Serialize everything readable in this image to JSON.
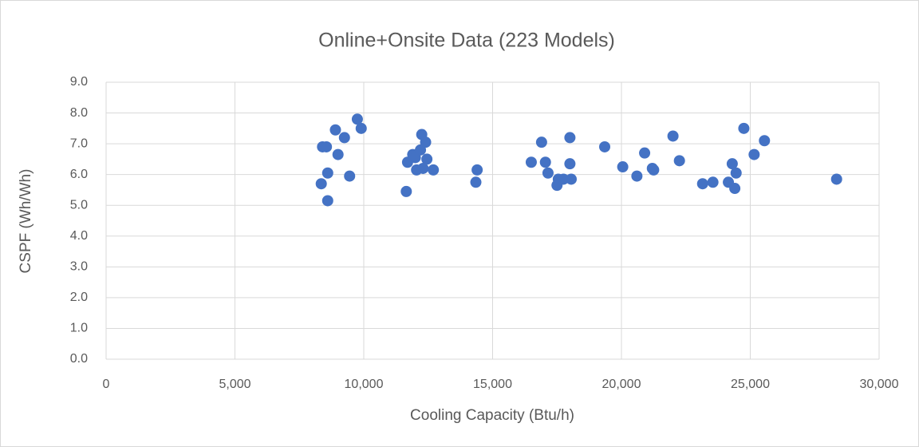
{
  "chart_data": {
    "type": "scatter",
    "title": "Online+Onsite Data (223 Models)",
    "x_label": "Cooling Capacity (Btu/h)",
    "y_label": "CSPF (Wh/Wh)",
    "color": "#4472c4",
    "grid": true,
    "x": [
      8400,
      8550,
      8350,
      8600,
      8600,
      8900,
      9000,
      9250,
      9450,
      9750,
      9900,
      11650,
      11700,
      11900,
      12000,
      12050,
      12200,
      12250,
      12300,
      12400,
      12450,
      12700,
      14350,
      14400,
      16500,
      16900,
      17050,
      17150,
      17500,
      17550,
      17750,
      18000,
      18000,
      18050,
      19350,
      20050,
      20600,
      20900,
      21200,
      21250,
      22000,
      22250,
      23150,
      23550,
      24150,
      24300,
      24400,
      24450,
      24750,
      25150,
      25550,
      28350
    ],
    "values": [
      6.9,
      6.9,
      5.7,
      6.05,
      5.15,
      7.45,
      6.65,
      7.2,
      5.95,
      7.8,
      7.5,
      5.45,
      6.4,
      6.65,
      6.55,
      6.15,
      6.8,
      7.3,
      6.2,
      7.05,
      6.5,
      6.15,
      5.75,
      6.15,
      6.4,
      7.05,
      6.4,
      6.05,
      5.65,
      5.85,
      5.85,
      7.2,
      6.35,
      5.85,
      6.9,
      6.25,
      5.95,
      6.7,
      6.2,
      6.15,
      7.25,
      6.45,
      5.7,
      5.75,
      5.75,
      6.35,
      5.55,
      6.05,
      7.5,
      6.65,
      7.1,
      5.85
    ],
    "xlim": [
      0,
      30000
    ],
    "xticks": [
      0,
      {
        "value": 5000,
        "label": "5,000"
      },
      {
        "value": 10000,
        "label": "10,000"
      },
      {
        "value": 15000,
        "label": "15,000"
      },
      {
        "value": 20000,
        "label": "20,000"
      },
      {
        "value": 25000,
        "label": "25,000"
      },
      {
        "value": 30000,
        "label": "30,000"
      }
    ],
    "ylim": [
      0,
      9
    ],
    "yticks": [
      {
        "value": 0,
        "label": "0.0"
      },
      {
        "value": 1,
        "label": "1.0"
      },
      {
        "value": 2,
        "label": "2.0"
      },
      {
        "value": 3,
        "label": "3.0"
      },
      {
        "value": 4,
        "label": "4.0"
      },
      {
        "value": 5,
        "label": "5.0"
      },
      {
        "value": 6,
        "label": "6.0"
      },
      {
        "value": 7,
        "label": "7.0"
      },
      {
        "value": 8,
        "label": "8.0"
      },
      {
        "value": 9,
        "label": "9.0"
      }
    ]
  }
}
